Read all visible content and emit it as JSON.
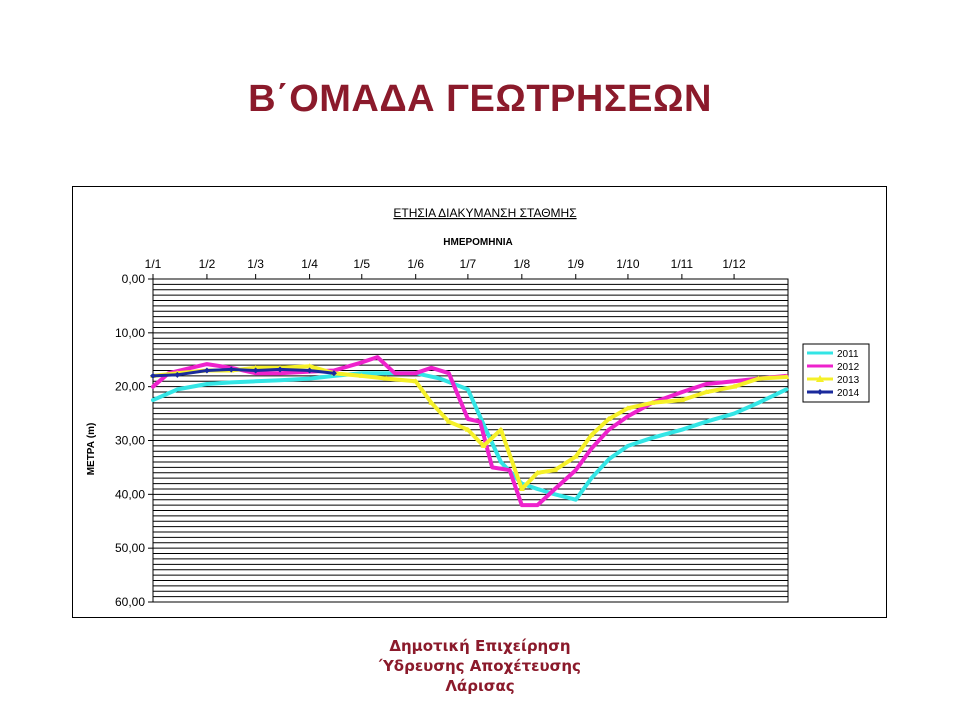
{
  "slide": {
    "title": "Β΄ΟΜΑΔΑ ΓΕΩΤΡΗΣΕΩΝ",
    "footer_line1": "Δημοτική Επιχείρηση",
    "footer_line2": "Ύδρευσης Αποχέτευσης",
    "footer_line3": "Λάρισας",
    "title_color": "#8b1a2b"
  },
  "chart_data": {
    "type": "line",
    "title": "ΕΤΗΣΙΑ ΔΙΑΚΥΜΑΝΣΗ ΣΤΑΘΜΗΣ",
    "xlabel": "ΗΜΕΡΟΜΗΝΙΑ",
    "ylabel": "ΜΕΤΡΑ (m)",
    "x_axis_position": "top",
    "y_inverted": true,
    "ylim": [
      0,
      60
    ],
    "y_ticks": [
      "0,00",
      "10,00",
      "20,00",
      "30,00",
      "40,00",
      "50,00",
      "60,00"
    ],
    "x_ticks": [
      "1/1",
      "1/2",
      "1/3",
      "1/4",
      "1/5",
      "1/6",
      "1/7",
      "1/8",
      "1/9",
      "1/10",
      "1/11",
      "1/12"
    ],
    "grid": true,
    "legend_position": "right",
    "series": [
      {
        "name": "2011",
        "color": "#33e5e5",
        "marker": "none",
        "x": [
          "1/1",
          "15/1",
          "1/2",
          "15/2",
          "1/3",
          "15/3",
          "1/4",
          "15/4",
          "1/5",
          "15/5",
          "1/6",
          "15/6",
          "1/7",
          "10/7",
          "20/7",
          "1/8",
          "10/8",
          "20/8",
          "1/9",
          "10/9",
          "20/9",
          "1/10",
          "15/10",
          "1/11",
          "15/11",
          "1/12",
          "15/12",
          "31/12"
        ],
        "values": [
          22.5,
          20.5,
          19.5,
          19.2,
          19,
          18.8,
          18.5,
          18,
          17.5,
          17.5,
          17.5,
          18.5,
          20.5,
          27,
          34,
          38,
          39,
          40,
          41,
          37,
          33.5,
          31,
          29.5,
          28,
          26.5,
          25,
          23,
          20.5
        ]
      },
      {
        "name": "2012",
        "color": "#ee22cc",
        "marker": "none",
        "x": [
          "1/1",
          "10/1",
          "1/2",
          "15/2",
          "1/3",
          "15/3",
          "1/4",
          "15/4",
          "1/5",
          "10/5",
          "20/5",
          "1/6",
          "10/6",
          "20/6",
          "1/7",
          "8/7",
          "15/7",
          "25/7",
          "1/8",
          "10/8",
          "20/8",
          "1/9",
          "10/9",
          "20/9",
          "1/10",
          "15/10",
          "1/11",
          "15/11",
          "1/12",
          "15/12",
          "31/12"
        ],
        "values": [
          20,
          17.5,
          15.8,
          16.5,
          17.5,
          17.5,
          17.2,
          17,
          15.5,
          14.5,
          17.5,
          17.5,
          16.5,
          17.5,
          26,
          26.5,
          35,
          35.5,
          42,
          42,
          39,
          35.5,
          31.5,
          28,
          25.5,
          23,
          21,
          19.5,
          19,
          18.5,
          18
        ]
      },
      {
        "name": "2013",
        "color": "#f5f028",
        "marker": "triangle",
        "x": [
          "1/1",
          "15/1",
          "1/2",
          "15/2",
          "1/3",
          "15/3",
          "1/4",
          "15/4",
          "1/5",
          "15/5",
          "1/6",
          "10/6",
          "20/6",
          "1/7",
          "10/7",
          "20/7",
          "1/8",
          "10/8",
          "20/8",
          "1/9",
          "10/9",
          "20/9",
          "1/10",
          "15/10",
          "1/11",
          "15/11",
          "1/12",
          "15/12",
          "31/12"
        ],
        "values": [
          18,
          17.5,
          17,
          17,
          16.5,
          16.5,
          16.2,
          17.5,
          18,
          18.5,
          19,
          23,
          26.5,
          28,
          31,
          28,
          39,
          36,
          35.5,
          33,
          29,
          26,
          24,
          23,
          22.5,
          21,
          20,
          18.5,
          18.2
        ]
      },
      {
        "name": "2014",
        "color": "#1a2a9c",
        "marker": "diamond",
        "x": [
          "1/1",
          "15/1",
          "1/2",
          "15/2",
          "1/3",
          "15/3",
          "1/4",
          "15/4"
        ],
        "values": [
          18,
          17.8,
          17,
          16.8,
          17,
          16.8,
          17,
          17.5
        ]
      }
    ]
  }
}
